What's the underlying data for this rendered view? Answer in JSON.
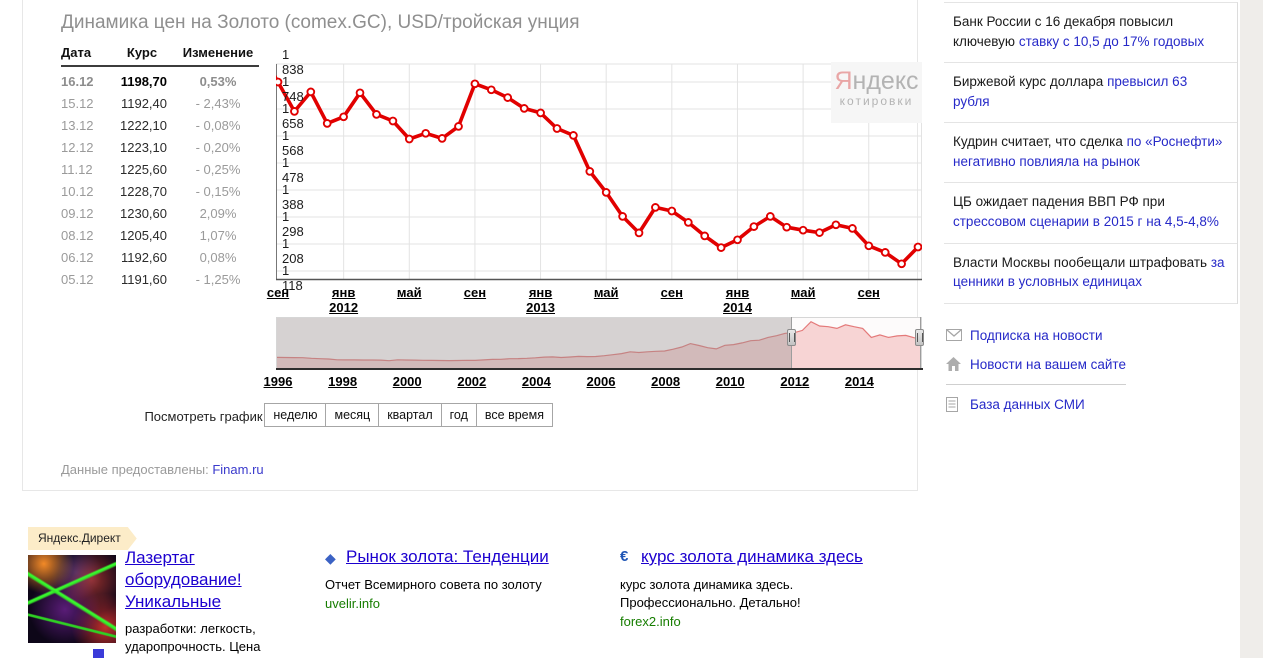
{
  "page": {
    "title": "Динамика цен на Золото (comex.GC), USD/тройская унция",
    "provider_label": "Данные предоставлены:",
    "provider_link": "Finam.ru"
  },
  "table": {
    "headers": [
      "Дата",
      "Курс",
      "Изменение"
    ],
    "rows": [
      {
        "date": "16.12",
        "price": "1198,70",
        "change": "0,53%",
        "current": true
      },
      {
        "date": "15.12",
        "price": "1192,40",
        "change": "- 2,43%",
        "current": false
      },
      {
        "date": "13.12",
        "price": "1222,10",
        "change": "- 0,08%",
        "current": false
      },
      {
        "date": "12.12",
        "price": "1223,10",
        "change": "- 0,20%",
        "current": false
      },
      {
        "date": "11.12",
        "price": "1225,60",
        "change": "- 0,25%",
        "current": false
      },
      {
        "date": "10.12",
        "price": "1228,70",
        "change": "- 0,15%",
        "current": false
      },
      {
        "date": "09.12",
        "price": "1230,60",
        "change": "2,09%",
        "current": false
      },
      {
        "date": "08.12",
        "price": "1205,40",
        "change": "1,07%",
        "current": false
      },
      {
        "date": "06.12",
        "price": "1192,60",
        "change": "0,08%",
        "current": false
      },
      {
        "date": "05.12",
        "price": "1191,60",
        "change": "- 1,25%",
        "current": false
      }
    ]
  },
  "chart_data": {
    "type": "line",
    "title": "Динамика цен на Золото (comex.GC), USD/тройская унция",
    "ylabel": "USD/тройская унция",
    "ylim": [
      1118,
      1838
    ],
    "y_ticks": [
      "1 838",
      "1 748",
      "1 658",
      "1 568",
      "1 478",
      "1 388",
      "1 298",
      "1 208",
      "1 118"
    ],
    "y_tick_values": [
      1838,
      1748,
      1658,
      1568,
      1478,
      1388,
      1298,
      1208,
      1118
    ],
    "grid": true,
    "line_color": "#e10000",
    "marker": "open-circle",
    "x_months": [
      "2011-09",
      "2011-10",
      "2011-11",
      "2011-12",
      "2012-01",
      "2012-02",
      "2012-03",
      "2012-04",
      "2012-05",
      "2012-06",
      "2012-07",
      "2012-08",
      "2012-09",
      "2012-10",
      "2012-11",
      "2012-12",
      "2013-01",
      "2013-02",
      "2013-03",
      "2013-04",
      "2013-05",
      "2013-06",
      "2013-07",
      "2013-08",
      "2013-09",
      "2013-10",
      "2013-11",
      "2013-12",
      "2014-01",
      "2014-02",
      "2014-03",
      "2014-04",
      "2014-05",
      "2014-06",
      "2014-07",
      "2014-08",
      "2014-09",
      "2014-10",
      "2014-11",
      "2014-12"
    ],
    "values": [
      1748,
      1650,
      1715,
      1610,
      1632,
      1712,
      1640,
      1618,
      1558,
      1577,
      1560,
      1600,
      1742,
      1722,
      1696,
      1660,
      1645,
      1593,
      1570,
      1450,
      1380,
      1300,
      1245,
      1330,
      1318,
      1280,
      1235,
      1196,
      1222,
      1266,
      1300,
      1264,
      1254,
      1246,
      1272,
      1260,
      1202,
      1180,
      1142,
      1198
    ],
    "x_tick_labels": [
      {
        "label": "сен",
        "month_index": 0
      },
      {
        "label": "янв",
        "month_index": 4
      },
      {
        "label": "май",
        "month_index": 8
      },
      {
        "label": "сен",
        "month_index": 12
      },
      {
        "label": "янв",
        "month_index": 16
      },
      {
        "label": "май",
        "month_index": 20
      },
      {
        "label": "сен",
        "month_index": 24
      },
      {
        "label": "янв",
        "month_index": 28
      },
      {
        "label": "май",
        "month_index": 32
      },
      {
        "label": "сен",
        "month_index": 36
      }
    ],
    "x_year_labels": [
      {
        "label": "2012",
        "month_index": 4
      },
      {
        "label": "2013",
        "month_index": 16
      },
      {
        "label": "2014",
        "month_index": 28
      }
    ],
    "watermark": {
      "brand_first": "Я",
      "brand_rest": "ндекс",
      "sub": "котировки"
    },
    "minimap": {
      "type": "area",
      "year_labels": [
        "1996",
        "1998",
        "2000",
        "2002",
        "2004",
        "2006",
        "2008",
        "2010",
        "2012",
        "2014"
      ],
      "values": [
        400,
        395,
        390,
        385,
        360,
        345,
        330,
        300,
        295,
        295,
        290,
        290,
        285,
        260,
        300,
        290,
        285,
        280,
        275,
        270,
        265,
        270,
        280,
        275,
        295,
        315,
        320,
        345,
        350,
        360,
        380,
        410,
        420,
        395,
        415,
        440,
        430,
        435,
        470,
        510,
        555,
        630,
        600,
        630,
        650,
        665,
        740,
        830,
        970,
        890,
        800,
        750,
        900,
        930,
        1000,
        1090,
        1110,
        1230,
        1300,
        1400,
        1420,
        1520,
        1880,
        1700,
        1670,
        1600,
        1750,
        1670,
        1600,
        1230,
        1330,
        1230,
        1290,
        1310,
        1210,
        1190
      ],
      "value_max": 1950,
      "selection": [
        0.797,
        0.997
      ]
    },
    "period_label": "Посмотреть график за:",
    "period_buttons": [
      "неделю",
      "месяц",
      "квартал",
      "год",
      "все время"
    ]
  },
  "news": {
    "items": [
      {
        "text": "Банк России с 16 декабря повысил ключевую ",
        "link": "ставку с 10,5 до 17% годовых"
      },
      {
        "text": "Биржевой курс доллара ",
        "link": "превысил 63 рубля"
      },
      {
        "text": "Кудрин считает, что сделка ",
        "link": "по «Роснефти» негативно повлияла на рынок"
      },
      {
        "text": "ЦБ ожидает падения ВВП РФ при ",
        "link": "стрессовом сценарии в 2015 г на 4,5-4,8%"
      },
      {
        "text": "Власти Москвы пообещали штрафовать ",
        "link": "за ценники в условных единицах"
      }
    ],
    "links": [
      {
        "icon": "envelope-icon",
        "label": "Подписка на новости"
      },
      {
        "icon": "home-icon",
        "label": "Новости на вашем сайте",
        "divider_after": true
      },
      {
        "icon": "document-icon",
        "label": "База данных СМИ"
      }
    ]
  },
  "ads": {
    "badge": "Яндекс.Директ",
    "items": [
      {
        "title": "Лазертаг оборудование! Уникальные",
        "body": "разработки: легкость, ударопрочность. Цена",
        "icon": "lasertag-photo"
      },
      {
        "title": "Рынок золота: Тенденции",
        "body": "Отчет Всемирного совета по золоту",
        "url": "uvelir.info",
        "icon": "diamond-icon"
      },
      {
        "title": "курс золота динамика здесь",
        "body": "курс золота динамика здесь. Профессионально. Детально!",
        "url": "forex2.info",
        "icon": "euro-icon"
      }
    ]
  },
  "colors": {
    "line": "#e10000",
    "grid": "#e3e3e3",
    "link_blue": "#2629c8",
    "ad_title_blue": "#1c00cf",
    "ad_url_green": "#167d00",
    "title_gray": "#8f8f8f",
    "minimap_fill": "rgba(235,140,140,0.35)",
    "minimap_line": "rgba(225,110,110,0.9)"
  }
}
